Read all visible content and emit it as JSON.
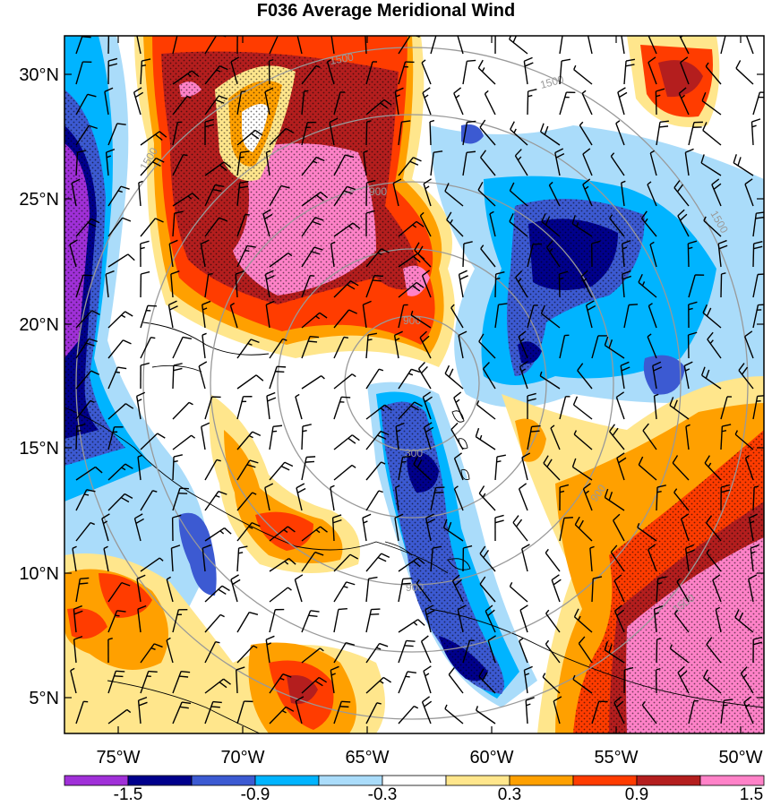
{
  "title": "F036 Average Meridional Wind",
  "map": {
    "lat_labels": [
      "30°N",
      "25°N",
      "20°N",
      "15°N",
      "10°N",
      "5°N"
    ],
    "lon_labels": [
      "75°W",
      "70°W",
      "65°W",
      "60°W",
      "55°W",
      "50°W"
    ],
    "range_ring_labels": [
      "300",
      "900",
      "900",
      "900",
      "900",
      "1500",
      "1500",
      "1500",
      "1500",
      "1500"
    ]
  },
  "colorbar": {
    "labels": [
      "-1.5",
      "-0.9",
      "-0.3",
      "0.3",
      "0.9",
      "1.5"
    ],
    "colors": [
      "#a030d8",
      "#00008c",
      "#3c5ad2",
      "#00b4ff",
      "#aadcfa",
      "#ffffff",
      "#ffe68c",
      "#ffa000",
      "#ff3c00",
      "#b41e1e",
      "#ff82c8"
    ]
  },
  "colors": {
    "ring": "#999999",
    "frame": "#000000",
    "barb": "#000000"
  }
}
